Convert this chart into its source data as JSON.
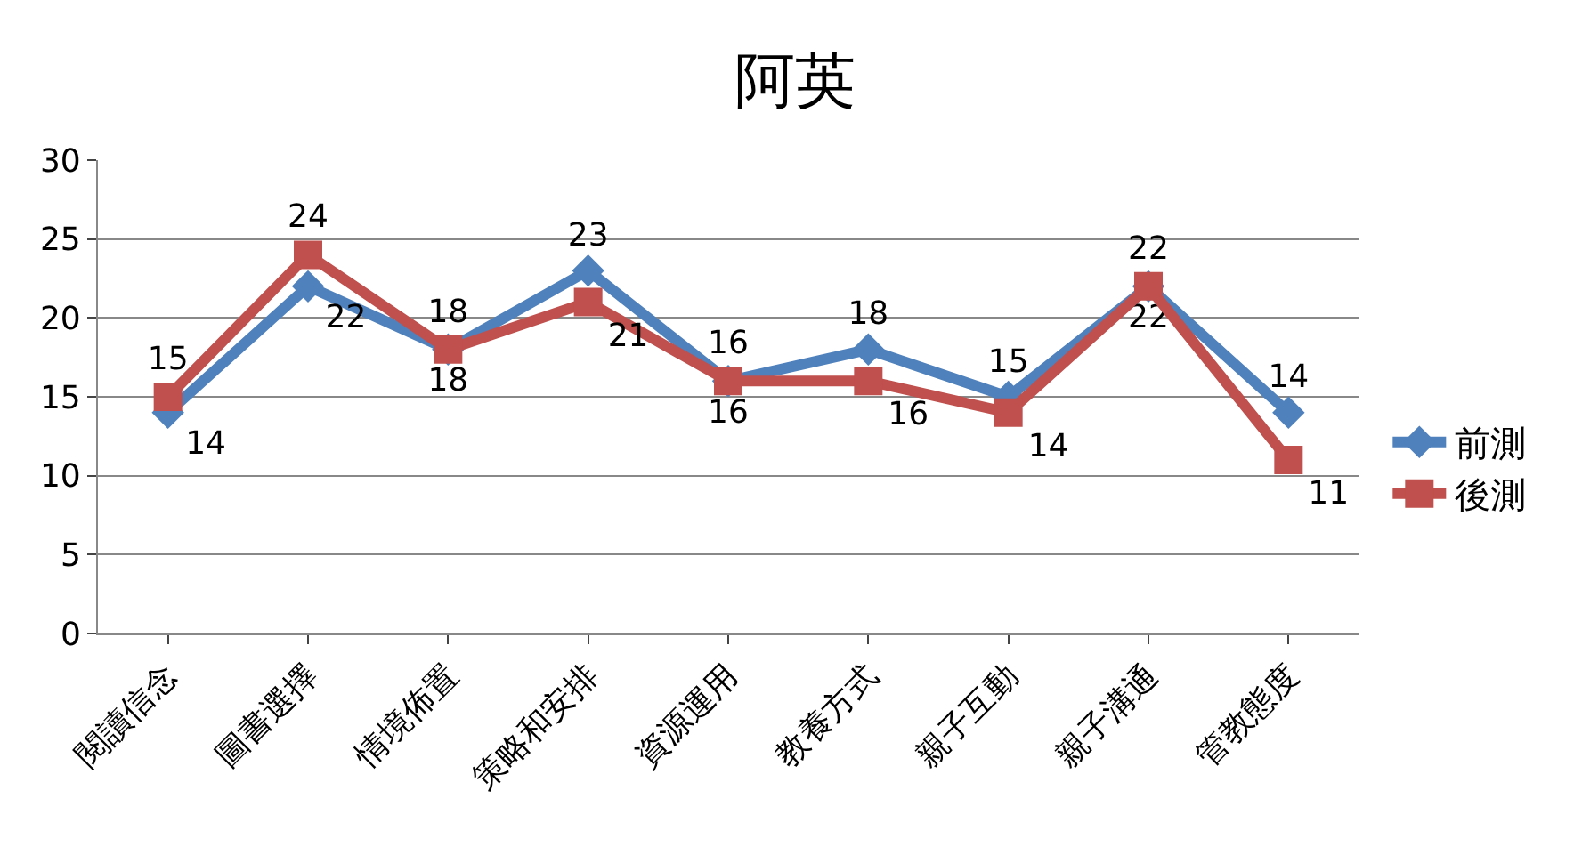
{
  "chart_data": {
    "type": "line",
    "title": "阿英",
    "categories": [
      "閱讀信念",
      "圖書選擇",
      "情境佈置",
      "策略和安排",
      "資源運用",
      "教養方式",
      "親子互動",
      "親子溝通",
      "管教態度"
    ],
    "series": [
      {
        "name": "前測",
        "color": "#4f81bd",
        "marker": "diamond",
        "values": [
          14,
          22,
          18,
          23,
          16,
          18,
          15,
          22,
          14
        ]
      },
      {
        "name": "後測",
        "color": "#c0504d",
        "marker": "square",
        "values": [
          15,
          24,
          18,
          21,
          16,
          16,
          14,
          22,
          11
        ]
      }
    ],
    "ylim": [
      0,
      30
    ],
    "yticks": [
      0,
      5,
      10,
      15,
      20,
      25,
      30
    ],
    "grid": "y",
    "legend": "right",
    "data_labels": true
  }
}
